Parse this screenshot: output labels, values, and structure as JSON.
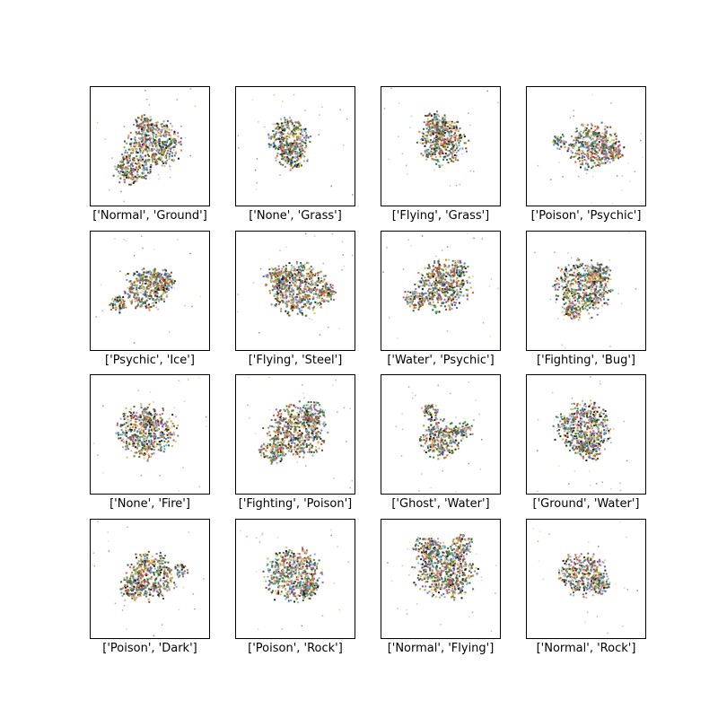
{
  "figure": {
    "panels": [
      {
        "label": "['Normal', 'Ground']"
      },
      {
        "label": "['None', 'Grass']"
      },
      {
        "label": "['Flying', 'Grass']"
      },
      {
        "label": "['Poison', 'Psychic']"
      },
      {
        "label": "['Psychic', 'Ice']"
      },
      {
        "label": "['Flying', 'Steel']"
      },
      {
        "label": "['Water', 'Psychic']"
      },
      {
        "label": "['Fighting', 'Bug']"
      },
      {
        "label": "['None', 'Fire']"
      },
      {
        "label": "['Fighting', 'Poison']"
      },
      {
        "label": "['Ghost', 'Water']"
      },
      {
        "label": "['Ground', 'Water']"
      },
      {
        "label": "['Poison', 'Dark']"
      },
      {
        "label": "['Poison', 'Rock']"
      },
      {
        "label": "['Normal', 'Flying']"
      },
      {
        "label": "['Normal', 'Rock']"
      }
    ]
  }
}
